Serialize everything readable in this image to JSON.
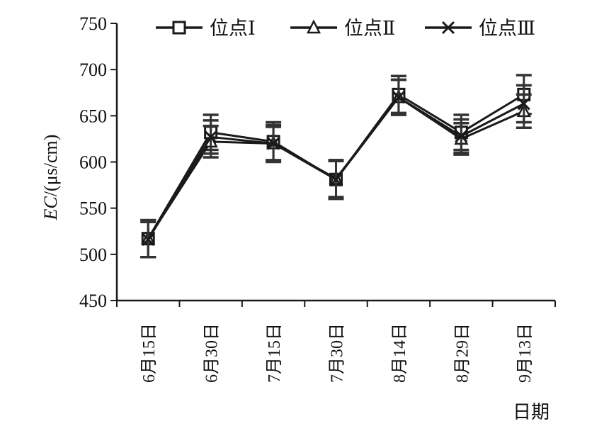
{
  "chart_data": {
    "type": "line",
    "categories": [
      "6月15日",
      "6月30日",
      "7月15日",
      "7月30日",
      "8月14日",
      "8月29日",
      "9月13日"
    ],
    "series": [
      {
        "name": "位点Ⅰ",
        "marker": "square",
        "values": [
          517,
          632,
          622,
          581,
          673,
          632,
          673
        ],
        "errors": [
          20,
          19,
          21,
          21,
          20,
          19,
          21
        ]
      },
      {
        "name": "位点Ⅱ",
        "marker": "triangle",
        "values": [
          517,
          622,
          620,
          582,
          670,
          625,
          655
        ],
        "errors": [
          20,
          17,
          18,
          20,
          19,
          17,
          18
        ]
      },
      {
        "name": "位点Ⅲ",
        "marker": "x",
        "values": [
          516,
          627,
          620,
          581,
          670,
          628,
          663
        ],
        "errors": [
          19,
          18,
          20,
          20,
          19,
          18,
          20
        ]
      }
    ],
    "ylim": [
      450,
      750
    ],
    "yticks": [
      450,
      500,
      550,
      600,
      650,
      700,
      750
    ],
    "ylabel_italic": "EC",
    "ylabel_unit": "/(μs/cm)",
    "xlabel": "日期",
    "legend_position": "top-right",
    "grid": false,
    "line_color": "#1a1a1a"
  }
}
